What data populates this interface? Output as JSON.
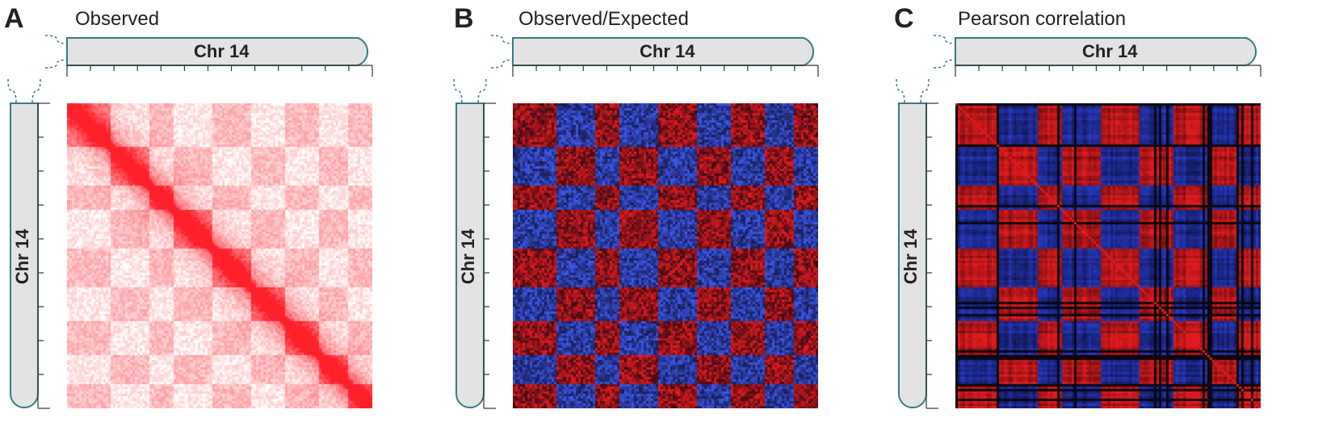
{
  "panels": [
    {
      "letter": "A",
      "title": "Observed",
      "chr_label_top": "Chr 14",
      "chr_label_left": "Chr 14",
      "map": "observed"
    },
    {
      "letter": "B",
      "title": "Observed/Expected",
      "chr_label_top": "Chr 14",
      "chr_label_left": "Chr 14",
      "map": "oe"
    },
    {
      "letter": "C",
      "title": "Pearson correlation",
      "chr_label_top": "Chr 14",
      "chr_label_left": "Chr 14",
      "map": "pearson"
    }
  ],
  "colors": {
    "chromosome_fill": "#e3e3e3",
    "chromosome_stroke": "#3a7b80",
    "observed_high": "#e0202a",
    "oe_high": "#e02020",
    "oe_low": "#3a5be0",
    "pearson_high": "#e01a20",
    "pearson_low": "#2a3ac8"
  }
}
